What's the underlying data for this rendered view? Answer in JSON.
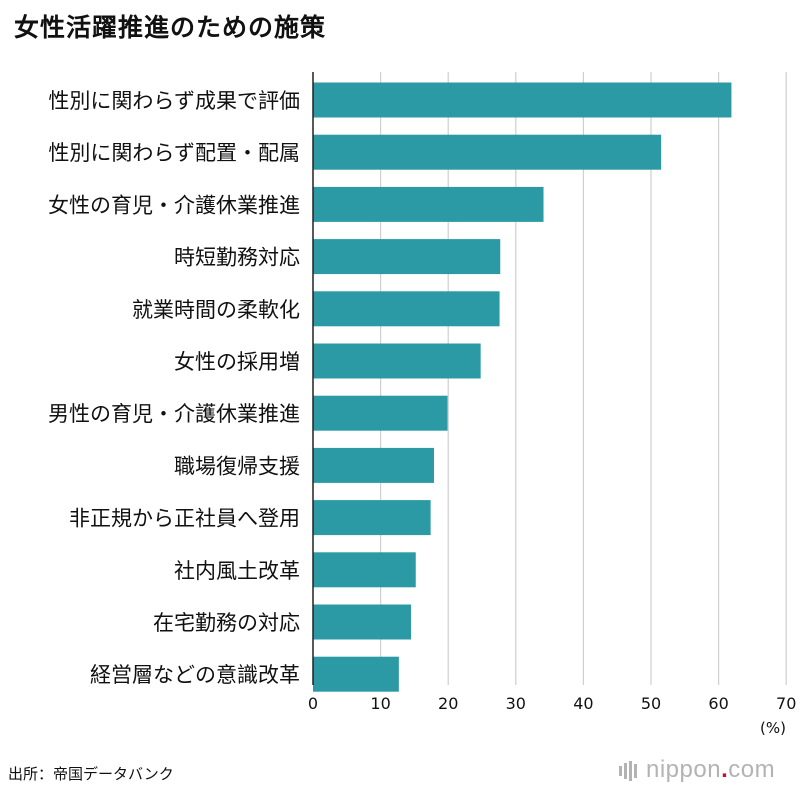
{
  "title": "女性活躍推進のための施策",
  "source": "出所：帝国データバンク",
  "logo": {
    "prefix": "nippon",
    "dot": ".",
    "suffix": "com"
  },
  "colors": {
    "bar": "#2c9aa5",
    "grid": "#cfcfcf",
    "axis": "#222222",
    "text": "#111111"
  },
  "chart_data": {
    "type": "bar",
    "orientation": "horizontal",
    "title": "女性活躍推進のための施策",
    "xlabel": "(%)",
    "ylabel": "",
    "xlim": [
      0,
      70
    ],
    "xticks": [
      0,
      10,
      20,
      30,
      40,
      50,
      60,
      70
    ],
    "grid": true,
    "categories": [
      "性別に関わらず成果で評価",
      "性別に関わらず配置・配属",
      "女性の育児・介護休業推進",
      "時短勤務対応",
      "就業時間の柔軟化",
      "女性の採用増",
      "男性の育児・介護休業推進",
      "職場復帰支援",
      "非正規から正社員へ登用",
      "社内風土改革",
      "在宅勤務の対応",
      "経営層などの意識改革"
    ],
    "values": [
      61.9,
      51.5,
      34.1,
      27.7,
      27.6,
      24.8,
      19.9,
      17.9,
      17.4,
      15.2,
      14.5,
      12.7
    ]
  }
}
